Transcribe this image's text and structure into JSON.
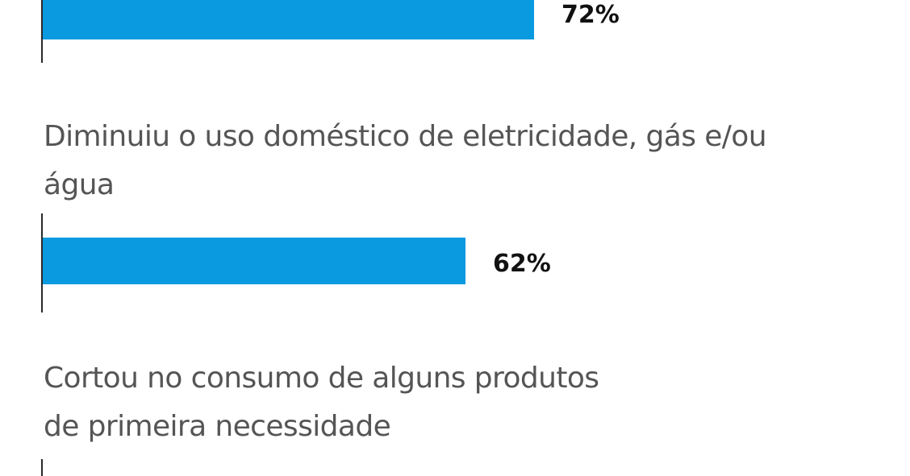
{
  "chart_data": {
    "type": "bar",
    "orientation": "horizontal",
    "categories": [
      "",
      "Diminuiu o uso doméstico de eletricidade, gás e/ou\nágua",
      "Cortou no consumo de alguns produtos\nde primeira necessidade"
    ],
    "values": [
      72,
      62,
      null
    ],
    "value_labels": [
      "72%",
      "62%",
      ""
    ],
    "unit": "%",
    "xlim": [
      0,
      100
    ],
    "grid": false,
    "legend": "none",
    "bar_color": "#0a9ae0"
  }
}
